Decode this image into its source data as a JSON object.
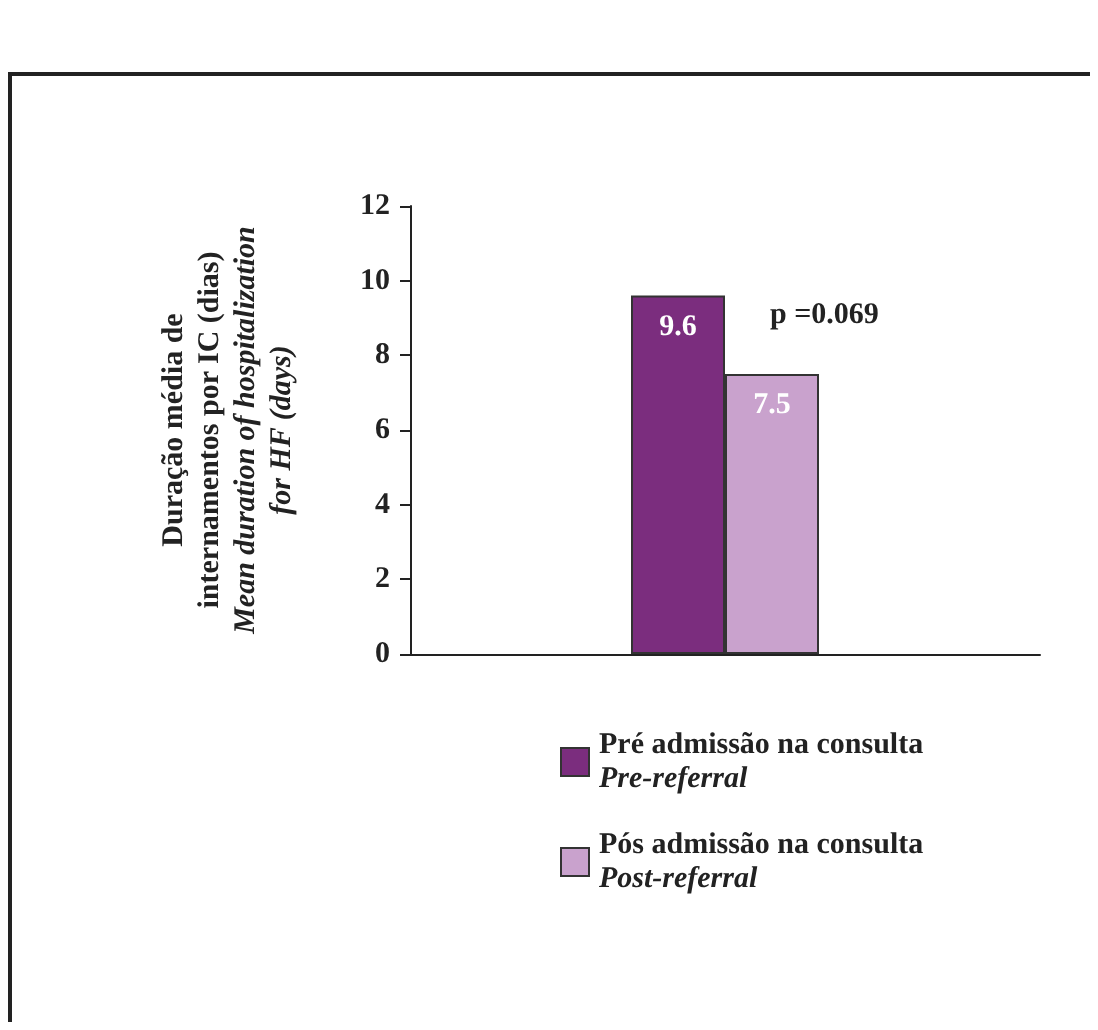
{
  "chart_data": {
    "type": "bar",
    "categories": [
      null
    ],
    "series": [
      {
        "name": "Pré admissão na consulta\nPre-referral",
        "color": "#7b2d7e",
        "values": [
          9.6
        ]
      },
      {
        "name": "Pós admissão na consulta\nPost-referral",
        "color": "#c9a2cd",
        "values": [
          7.5
        ]
      }
    ],
    "ylabel": "Duração média de\ninternamentos por IC (dias)\nMean duration of hospitalization\nfor HF (days)",
    "ylim": [
      0,
      12
    ],
    "yticks": [
      0,
      2,
      4,
      6,
      8,
      10,
      12
    ],
    "data_labels": true,
    "legend": "bottom",
    "grid": false,
    "annotations": [
      "p =0.069"
    ]
  }
}
